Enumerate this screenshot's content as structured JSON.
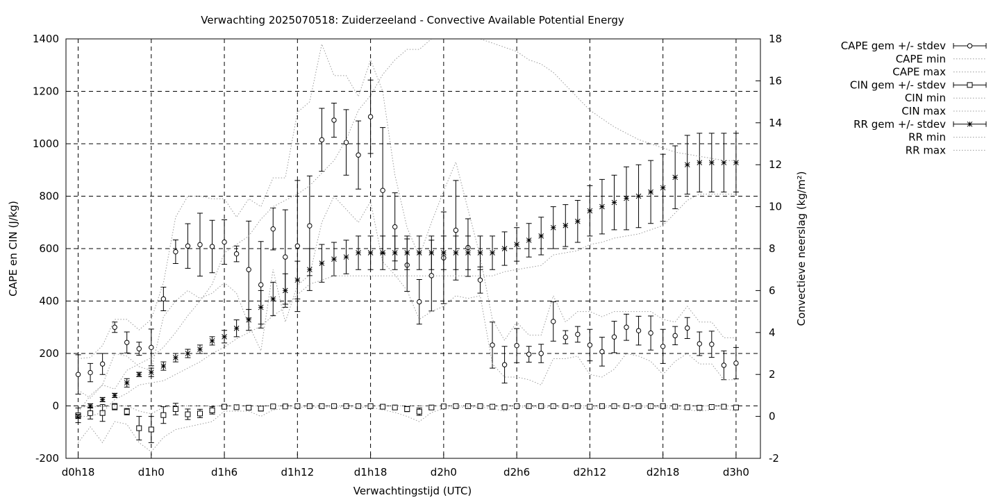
{
  "chart_data": {
    "type": "line",
    "title": "Verwachting 2025070518: Zuiderzeeland - Convective Available Potential Energy",
    "xlabel": "Verwachtingstijd (UTC)",
    "ylabel": "CAPE en CIN (J/kg)",
    "y2label": "Convectieve neerslag (kg/m²)",
    "x_start": "d0h18",
    "x_step_hours": 1,
    "xlim": [
      -1,
      56
    ],
    "ylim": [
      -200,
      1400
    ],
    "y2lim": [
      -2,
      18
    ],
    "x_ticks": [
      {
        "x": 0,
        "label": "d0h18"
      },
      {
        "x": 6,
        "label": "d1h0"
      },
      {
        "x": 12,
        "label": "d1h6"
      },
      {
        "x": 18,
        "label": "d1h12"
      },
      {
        "x": 24,
        "label": "d1h18"
      },
      {
        "x": 30,
        "label": "d2h0"
      },
      {
        "x": 36,
        "label": "d2h6"
      },
      {
        "x": 42,
        "label": "d2h12"
      },
      {
        "x": 48,
        "label": "d2h18"
      },
      {
        "x": 54,
        "label": "d3h0"
      }
    ],
    "y_ticks": [
      -200,
      0,
      200,
      400,
      600,
      800,
      1000,
      1200,
      1400
    ],
    "y2_ticks": [
      -2,
      0,
      2,
      4,
      6,
      8,
      10,
      12,
      14,
      16,
      18
    ],
    "grid": true,
    "legend_position": "right-outside",
    "x": [
      0,
      1,
      2,
      3,
      4,
      5,
      6,
      7,
      8,
      9,
      10,
      11,
      12,
      13,
      14,
      15,
      16,
      17,
      18,
      19,
      20,
      21,
      22,
      23,
      24,
      25,
      26,
      27,
      28,
      29,
      30,
      31,
      32,
      33,
      34,
      35,
      36,
      37,
      38,
      39,
      40,
      41,
      42,
      43,
      44,
      45,
      46,
      47,
      48,
      49,
      50,
      51,
      52,
      53,
      54
    ],
    "series": [
      {
        "name": "CAPE gem +/- stdev",
        "axis": "y1",
        "style": "errorbar",
        "marker": "circle",
        "values": [
          120,
          127,
          160,
          300,
          242,
          218,
          223,
          408,
          588,
          610,
          615,
          608,
          625,
          580,
          520,
          462,
          675,
          568,
          610,
          687,
          1015,
          1090,
          1005,
          957,
          1103,
          822,
          683,
          537,
          397,
          497,
          565,
          670,
          604,
          480,
          232,
          157,
          230,
          197,
          200,
          322,
          262,
          273,
          232,
          207,
          263,
          300,
          287,
          278,
          227,
          268,
          297,
          237,
          235,
          155,
          163
        ],
        "stdev": [
          75,
          35,
          40,
          20,
          40,
          25,
          70,
          45,
          45,
          85,
          120,
          100,
          85,
          30,
          185,
          165,
          80,
          180,
          250,
          190,
          120,
          65,
          125,
          130,
          140,
          240,
          130,
          100,
          85,
          135,
          175,
          190,
          110,
          50,
          88,
          70,
          65,
          30,
          35,
          75,
          25,
          30,
          60,
          55,
          60,
          50,
          55,
          65,
          65,
          35,
          40,
          45,
          50,
          55,
          60
        ]
      },
      {
        "name": "CAPE min",
        "axis": "y1",
        "style": "dotted",
        "values": [
          60,
          30,
          80,
          200,
          190,
          150,
          135,
          340,
          400,
          440,
          410,
          430,
          470,
          430,
          310,
          210,
          520,
          320,
          460,
          500,
          700,
          800,
          750,
          700,
          780,
          550,
          500,
          440,
          330,
          360,
          380,
          420,
          410,
          420,
          160,
          110,
          110,
          100,
          80,
          180,
          180,
          190,
          120,
          110,
          140,
          200,
          190,
          170,
          120,
          170,
          200,
          160,
          160,
          100,
          100
        ]
      },
      {
        "name": "CAPE max",
        "axis": "y1",
        "style": "dotted",
        "values": [
          180,
          185,
          230,
          330,
          330,
          290,
          330,
          470,
          720,
          800,
          800,
          790,
          790,
          720,
          790,
          760,
          870,
          870,
          1120,
          1160,
          1380,
          1260,
          1260,
          1180,
          1320,
          1200,
          880,
          680,
          570,
          700,
          820,
          930,
          750,
          570,
          330,
          250,
          320,
          270,
          270,
          420,
          320,
          360,
          360,
          340,
          360,
          360,
          360,
          360,
          330,
          320,
          380,
          320,
          320,
          260,
          260
        ]
      },
      {
        "name": "CIN gem +/- stdev",
        "axis": "y1",
        "style": "errorbar",
        "marker": "square",
        "values": [
          -36,
          -28,
          -27,
          -3,
          -22,
          -85,
          -90,
          -35,
          -12,
          -32,
          -29,
          -17,
          -3,
          -5,
          -7,
          -10,
          -2,
          -2,
          -1,
          -1,
          -1,
          -1,
          -1,
          -1,
          -1,
          -3,
          -6,
          -12,
          -22,
          -6,
          -2,
          -1,
          -1,
          -1,
          -3,
          -5,
          -1,
          -1,
          -1,
          -1,
          -1,
          -1,
          -3,
          -1,
          -1,
          -1,
          -1,
          -1,
          -1,
          -3,
          -5,
          -7,
          -4,
          -3,
          -6
        ],
        "stdev": [
          28,
          22,
          32,
          12,
          12,
          45,
          50,
          32,
          22,
          20,
          16,
          14,
          6,
          6,
          6,
          10,
          4,
          4,
          3,
          3,
          3,
          3,
          3,
          3,
          3,
          5,
          7,
          10,
          14,
          8,
          5,
          3,
          3,
          3,
          4,
          5,
          3,
          3,
          3,
          3,
          3,
          3,
          4,
          3,
          3,
          3,
          3,
          3,
          3,
          4,
          5,
          6,
          5,
          4,
          6
        ]
      },
      {
        "name": "CIN min",
        "axis": "y1",
        "style": "dotted",
        "values": [
          -140,
          -80,
          -140,
          -60,
          -70,
          -140,
          -175,
          -120,
          -90,
          -80,
          -70,
          -60,
          -20,
          -20,
          -20,
          -40,
          -15,
          -10,
          -5,
          -5,
          -5,
          -5,
          -5,
          -5,
          -5,
          -15,
          -25,
          -40,
          -60,
          -25,
          -10,
          -5,
          -5,
          -5,
          -10,
          -20,
          -5,
          -5,
          -5,
          -5,
          -5,
          -5,
          -10,
          -5,
          -5,
          -5,
          -5,
          -5,
          -5,
          -10,
          -15,
          -20,
          -15,
          -10,
          -20
        ]
      },
      {
        "name": "CIN max",
        "axis": "y1",
        "style": "dotted",
        "values": [
          -5,
          -3,
          -3,
          0,
          0,
          -20,
          -30,
          -5,
          0,
          0,
          0,
          0,
          0,
          0,
          0,
          0,
          0,
          0,
          0,
          0,
          0,
          0,
          0,
          0,
          0,
          0,
          0,
          0,
          0,
          0,
          0,
          0,
          0,
          0,
          0,
          0,
          0,
          0,
          0,
          0,
          0,
          0,
          0,
          0,
          0,
          0,
          0,
          0,
          0,
          0,
          0,
          0,
          0,
          0,
          0
        ]
      },
      {
        "name": "RR gem +/- stdev",
        "axis": "y2",
        "style": "errorbar",
        "marker": "star",
        "values": [
          0,
          0.5,
          0.8,
          1,
          1.6,
          2,
          2.1,
          2.4,
          2.8,
          3,
          3.2,
          3.6,
          3.8,
          4.2,
          4.6,
          5.2,
          5.6,
          6,
          6.5,
          7,
          7.3,
          7.5,
          7.6,
          7.8,
          7.8,
          7.8,
          7.8,
          7.8,
          7.8,
          7.8,
          7.8,
          7.8,
          7.8,
          7.8,
          7.8,
          8,
          8.2,
          8.4,
          8.6,
          9,
          9.1,
          9.3,
          9.8,
          10,
          10.2,
          10.4,
          10.5,
          10.7,
          10.9,
          11.4,
          12,
          12.1,
          12.1,
          12.1,
          12.1
        ],
        "stdev": [
          0.1,
          0.1,
          0.1,
          0.1,
          0.2,
          0.1,
          0.2,
          0.2,
          0.2,
          0.2,
          0.2,
          0.2,
          0.3,
          0.4,
          0.5,
          0.8,
          0.8,
          0.8,
          0.9,
          1,
          0.9,
          0.8,
          0.8,
          0.8,
          0.8,
          0.8,
          0.8,
          0.8,
          0.8,
          0.8,
          0.8,
          0.8,
          0.8,
          0.8,
          0.8,
          0.8,
          0.8,
          0.8,
          0.9,
          1,
          1,
          1,
          1.2,
          1.3,
          1.3,
          1.5,
          1.5,
          1.5,
          1.6,
          1.5,
          1.4,
          1.4,
          1.4,
          1.4,
          1.4
        ]
      },
      {
        "name": "RR min",
        "axis": "y2",
        "style": "dotted",
        "values": [
          0,
          0,
          0.2,
          0.8,
          1.1,
          1.5,
          1.6,
          1.7,
          2,
          2.3,
          2.6,
          3,
          3.3,
          3.7,
          4,
          4.3,
          4.8,
          5.2,
          5.8,
          6.3,
          6.5,
          6.7,
          6.7,
          6.7,
          6.7,
          6.7,
          6.7,
          6.7,
          6.7,
          6.7,
          6.7,
          6.7,
          6.7,
          6.7,
          6.7,
          6.9,
          7,
          7.1,
          7.2,
          7.7,
          7.8,
          7.9,
          8.2,
          8.3,
          8.5,
          8.6,
          8.7,
          8.9,
          9.1,
          9.7,
          10.3,
          10.6,
          10.6,
          10.6,
          10.6
        ]
      },
      {
        "name": "RR max",
        "axis": "y2",
        "style": "dotted",
        "values": [
          0.2,
          1,
          1.5,
          1.3,
          2.2,
          2.5,
          2.8,
          3.3,
          4,
          4.8,
          5.5,
          6.3,
          7.8,
          8.2,
          8.6,
          9.4,
          10,
          10.3,
          10.6,
          11,
          11.6,
          12.2,
          13.2,
          14.6,
          15.3,
          16.3,
          17,
          17.5,
          17.5,
          18,
          18,
          18,
          18,
          18,
          17.8,
          17.6,
          17.4,
          17,
          16.8,
          16.4,
          15.8,
          15.2,
          14.6,
          14.2,
          13.8,
          13.5,
          13.2,
          13,
          12.8,
          12.6,
          12.5,
          12.4,
          12.3,
          12.2,
          12.2
        ]
      }
    ]
  }
}
